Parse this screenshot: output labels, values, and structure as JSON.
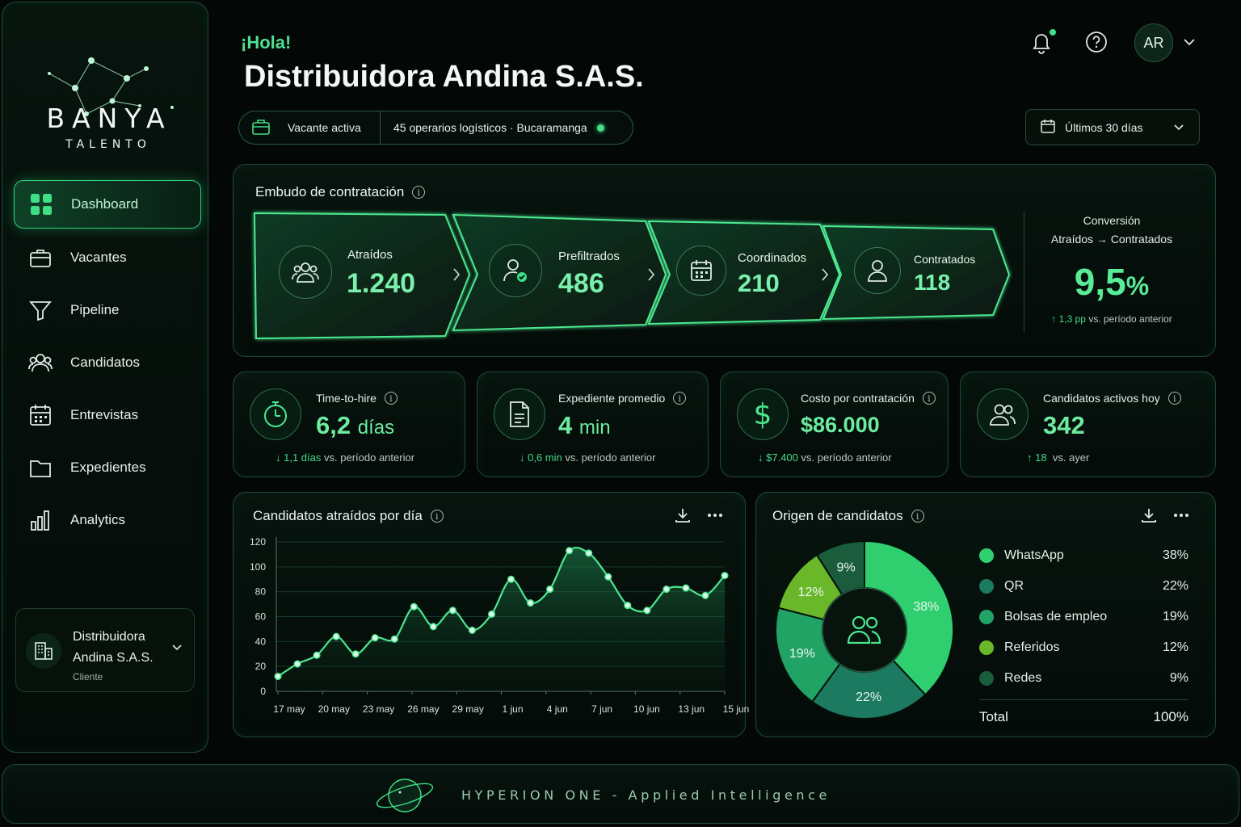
{
  "brand": {
    "name": "BANYA",
    "sub": "TALENTO"
  },
  "nav": [
    {
      "label": "Dashboard",
      "icon": "grid-icon",
      "active": true
    },
    {
      "label": "Vacantes",
      "icon": "briefcase-icon"
    },
    {
      "label": "Pipeline",
      "icon": "filter-icon"
    },
    {
      "label": "Candidatos",
      "icon": "users-icon"
    },
    {
      "label": "Entrevistas",
      "icon": "calendar-icon"
    },
    {
      "label": "Expedientes",
      "icon": "folder-icon"
    },
    {
      "label": "Analytics",
      "icon": "bar-chart-icon"
    }
  ],
  "client": {
    "name": "Distribuidora Andina S.A.S.",
    "role": "Cliente"
  },
  "header": {
    "greeting": "¡Hola!",
    "company": "Distribuidora Andina S.A.S.",
    "vacancy_label": "Vacante activa",
    "vacancy_detail": "45 operarios logísticos · Bucaramanga",
    "avatar_initials": "AR",
    "date_range": "Últimos 30 días"
  },
  "funnel": {
    "title": "Embudo de contratación",
    "stages": [
      {
        "label": "Atraídos",
        "value": "1.240",
        "icon": "users-icon"
      },
      {
        "label": "Prefiltrados",
        "value": "486",
        "icon": "user-check-icon"
      },
      {
        "label": "Coordinados",
        "value": "210",
        "icon": "calendar-icon"
      },
      {
        "label": "Contratados",
        "value": "118",
        "icon": "user-icon"
      }
    ],
    "conversion": {
      "title": "Conversión",
      "subtitle": "Atraídos → Contratados",
      "value": "9,5",
      "unit": "%",
      "delta": "1,3 pp",
      "delta_text": "vs. período anterior"
    }
  },
  "kpis": [
    {
      "title": "Time-to-hire",
      "value": "6,2",
      "unit": "días",
      "delta": "1,1 días",
      "delta_text": "vs. período anterior",
      "icon": "stopwatch-icon",
      "dir": "down"
    },
    {
      "title": "Expediente promedio",
      "value": "4",
      "unit": "min",
      "delta": "0,6 min",
      "delta_text": "vs. período anterior",
      "icon": "document-icon",
      "dir": "down"
    },
    {
      "title": "Costo por contratación",
      "value": "$86.000",
      "unit": "",
      "delta": "$7.400",
      "delta_text": "vs. período anterior",
      "icon": "dollar-icon",
      "dir": "down"
    },
    {
      "title": "Candidatos activos hoy",
      "value": "342",
      "unit": "",
      "delta": "18",
      "delta_text": "vs. ayer",
      "icon": "users-icon",
      "dir": "up"
    }
  ],
  "chart_data": [
    {
      "type": "area",
      "title": "Candidatos atraídos por día",
      "ylim": [
        0,
        120
      ],
      "yticks": [
        0,
        20,
        40,
        60,
        80,
        100,
        120
      ],
      "xtick_labels": [
        "17 may",
        "20 may",
        "23 may",
        "26 may",
        "29 may",
        "1 jun",
        "4 jun",
        "7 jun",
        "10 jun",
        "13 jun",
        "15 jun"
      ],
      "grid": true,
      "values": [
        12,
        22,
        29,
        44,
        30,
        43,
        42,
        68,
        52,
        65,
        49,
        62,
        90,
        71,
        82,
        113,
        111,
        92,
        69,
        65,
        82,
        83,
        77,
        93
      ],
      "color": "#3ee085"
    },
    {
      "type": "pie",
      "title": "Origen de candidatos",
      "slices": [
        {
          "label": "WhatsApp",
          "value": 38,
          "display": "38%",
          "color": "#2fcf70"
        },
        {
          "label": "QR",
          "value": 22,
          "display": "22%",
          "color": "#1c7a60"
        },
        {
          "label": "Bolsas de empleo",
          "value": 19,
          "display": "19%",
          "color": "#21a366"
        },
        {
          "label": "Referidos",
          "value": 12,
          "display": "12%",
          "color": "#6ab82a"
        },
        {
          "label": "Redes",
          "value": 9,
          "display": "9%",
          "color": "#1a5c3c"
        }
      ],
      "total_label": "Total",
      "total_value": "100%"
    }
  ],
  "footer": {
    "text": "HYPERION ONE - Applied Intelligence"
  },
  "colors": {
    "accent": "#3ee085",
    "bg": "#030806",
    "border": "#1f4a33"
  }
}
